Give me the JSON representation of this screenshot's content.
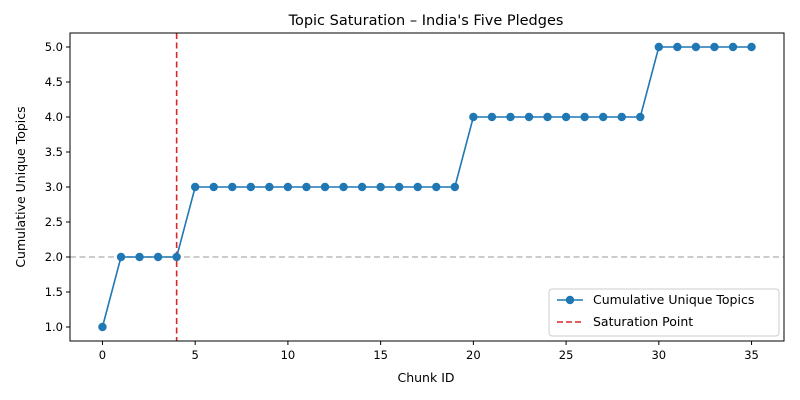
{
  "chart_data": {
    "type": "line",
    "title": "Topic Saturation – India's Five Pledges",
    "xlabel": "Chunk ID",
    "ylabel": "Cumulative Unique Topics",
    "xlim": [
      -1.75,
      36.75
    ],
    "ylim": [
      0.8,
      5.2
    ],
    "x_ticks": [
      0,
      5,
      10,
      15,
      20,
      25,
      30,
      35
    ],
    "y_ticks": [
      1.0,
      1.5,
      2.0,
      2.5,
      3.0,
      3.5,
      4.0,
      4.5,
      5.0
    ],
    "x_tick_labels": [
      "0",
      "5",
      "10",
      "15",
      "20",
      "25",
      "30",
      "35"
    ],
    "y_tick_labels": [
      "1.0",
      "1.5",
      "2.0",
      "2.5",
      "3.0",
      "3.5",
      "4.0",
      "4.5",
      "5.0"
    ],
    "grid": false,
    "legend_position": "lower-right",
    "series": [
      {
        "name": "Cumulative Unique Topics",
        "color": "#1f77b4",
        "marker": "circle",
        "x": [
          0,
          1,
          2,
          3,
          4,
          5,
          6,
          7,
          8,
          9,
          10,
          11,
          12,
          13,
          14,
          15,
          16,
          17,
          18,
          19,
          20,
          21,
          22,
          23,
          24,
          25,
          26,
          27,
          28,
          29,
          30,
          31,
          32,
          33,
          34,
          35
        ],
        "y": [
          1,
          2,
          2,
          2,
          2,
          3,
          3,
          3,
          3,
          3,
          3,
          3,
          3,
          3,
          3,
          3,
          3,
          3,
          3,
          3,
          4,
          4,
          4,
          4,
          4,
          4,
          4,
          4,
          4,
          4,
          5,
          5,
          5,
          5,
          5,
          5
        ]
      }
    ],
    "reference_lines": [
      {
        "name": "Saturation Point",
        "orientation": "vertical",
        "value": 4,
        "color": "#d62728",
        "style": "dashed",
        "in_legend": true
      },
      {
        "orientation": "horizontal",
        "value": 2,
        "color": "#bbbbbb",
        "style": "dashed",
        "in_legend": false
      }
    ]
  }
}
